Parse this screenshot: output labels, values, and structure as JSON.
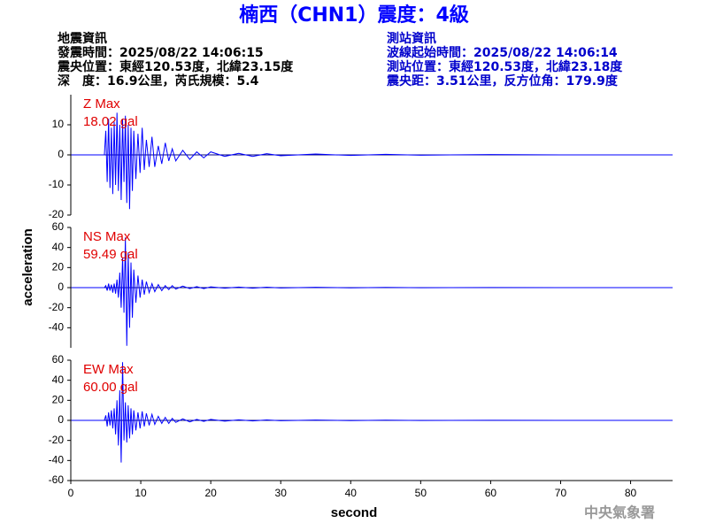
{
  "header": {
    "title": "楠西（CHN1）震度：4級",
    "left": [
      "地震資訊",
      "發震時間：2025/08/22 14:06:15",
      "震央位置：東經120.53度，北緯23.15度",
      "深　度：16.9公里，芮氏規模：5.4"
    ],
    "right": [
      "測站資訊",
      "波線起始時間：2025/08/22 14:06:14",
      "測站位置：東經120.53度，北緯23.18度",
      "震央距：3.51公里，反方位角：179.9度"
    ]
  },
  "y_label": "acceleration",
  "footer": "中央氣象署",
  "chart_data": [
    {
      "type": "line",
      "annotations": [
        "Z Max",
        "18.02 gal"
      ],
      "color": "#0000ff",
      "x": [
        0,
        4.8,
        5.0,
        5.2,
        5.4,
        5.6,
        5.8,
        6.0,
        6.2,
        6.4,
        6.6,
        6.8,
        7.0,
        7.2,
        7.4,
        7.6,
        7.8,
        8.0,
        8.2,
        8.4,
        8.6,
        8.8,
        9.0,
        9.3,
        9.6,
        9.9,
        10.2,
        10.5,
        10.8,
        11.2,
        11.6,
        12.0,
        12.5,
        13,
        13.5,
        14,
        14.5,
        15,
        16,
        17,
        18,
        19,
        20,
        22,
        24,
        26,
        28,
        30,
        35,
        40,
        45,
        50,
        60,
        70,
        86
      ],
      "values": [
        0,
        0,
        8,
        -9,
        12,
        -11,
        9,
        -13,
        11,
        -10,
        14,
        -12,
        10,
        -15,
        12,
        -9,
        13,
        -16,
        10,
        -18,
        9,
        -12,
        8,
        -8,
        7,
        -6,
        9,
        -5,
        5,
        -4,
        6,
        -4,
        3,
        -3,
        4,
        -2,
        2,
        -2,
        1.5,
        -1.5,
        1,
        -1,
        1,
        -0.5,
        0.5,
        -0.5,
        0.4,
        -0.3,
        0.3,
        -0.2,
        0.2,
        -0.1,
        0.1,
        0,
        0
      ],
      "xlim": [
        0,
        86
      ],
      "ylim": [
        -20,
        20
      ],
      "yticks": [
        -20,
        -10,
        0,
        10
      ]
    },
    {
      "type": "line",
      "annotations": [
        "NS Max",
        "59.49 gal"
      ],
      "color": "#0000ff",
      "x": [
        0,
        4.8,
        5.0,
        5.2,
        5.4,
        5.6,
        5.8,
        6.0,
        6.2,
        6.4,
        6.6,
        6.8,
        7.0,
        7.2,
        7.4,
        7.6,
        7.8,
        8.0,
        8.2,
        8.4,
        8.6,
        8.8,
        9.0,
        9.3,
        9.6,
        9.9,
        10.2,
        10.5,
        10.8,
        11.2,
        11.6,
        12.0,
        12.5,
        13,
        13.5,
        14,
        14.5,
        15,
        16,
        17,
        18,
        19,
        20,
        22,
        24,
        26,
        28,
        30,
        35,
        40,
        45,
        50,
        60,
        70,
        86
      ],
      "values": [
        0,
        0,
        2,
        -3,
        4,
        -3,
        3,
        -5,
        4,
        -6,
        8,
        -10,
        15,
        -20,
        30,
        -25,
        50,
        -58,
        35,
        -40,
        25,
        -30,
        18,
        -15,
        12,
        -10,
        8,
        -7,
        6,
        -5,
        4,
        -4,
        3,
        -3,
        2,
        -2,
        2,
        -1.5,
        1.5,
        -1,
        1,
        -1,
        0.8,
        -0.6,
        0.5,
        -0.5,
        0.4,
        -0.3,
        0.3,
        -0.2,
        0.2,
        -0.1,
        0.1,
        0,
        0
      ],
      "xlim": [
        0,
        86
      ],
      "ylim": [
        -60,
        60
      ],
      "yticks": [
        -40,
        -20,
        0,
        20,
        40,
        60
      ]
    },
    {
      "type": "line",
      "annotations": [
        "EW Max",
        "60.00 gal"
      ],
      "color": "#0000ff",
      "x": [
        0,
        4.8,
        5.0,
        5.2,
        5.4,
        5.6,
        5.8,
        6.0,
        6.2,
        6.4,
        6.6,
        6.8,
        7.0,
        7.2,
        7.4,
        7.6,
        7.8,
        8.0,
        8.2,
        8.4,
        8.6,
        8.8,
        9.0,
        9.3,
        9.6,
        9.9,
        10.2,
        10.5,
        10.8,
        11.2,
        11.6,
        12.0,
        12.5,
        13,
        13.5,
        14,
        14.5,
        15,
        16,
        17,
        18,
        19,
        20,
        22,
        24,
        26,
        28,
        30,
        35,
        40,
        45,
        50,
        60,
        70,
        86
      ],
      "values": [
        0,
        0,
        5,
        -6,
        8,
        -5,
        10,
        -8,
        12,
        -14,
        20,
        -25,
        30,
        -42,
        58,
        -20,
        18,
        -22,
        15,
        -18,
        12,
        -14,
        10,
        -10,
        8,
        -8,
        9,
        -6,
        7,
        -5,
        6,
        -4,
        4,
        -3,
        3,
        -3,
        2,
        -2,
        1.5,
        -1.5,
        1,
        -1,
        1,
        -0.8,
        0.6,
        -0.5,
        0.4,
        -0.3,
        0.3,
        -0.2,
        0.2,
        -0.1,
        0.1,
        0,
        0
      ],
      "xlim": [
        0,
        86
      ],
      "ylim": [
        -60,
        60
      ],
      "yticks": [
        -60,
        -40,
        -20,
        0,
        20,
        40,
        60
      ],
      "xticks": [
        0,
        10,
        20,
        30,
        40,
        50,
        60,
        70,
        80
      ],
      "x_label": "second"
    }
  ]
}
